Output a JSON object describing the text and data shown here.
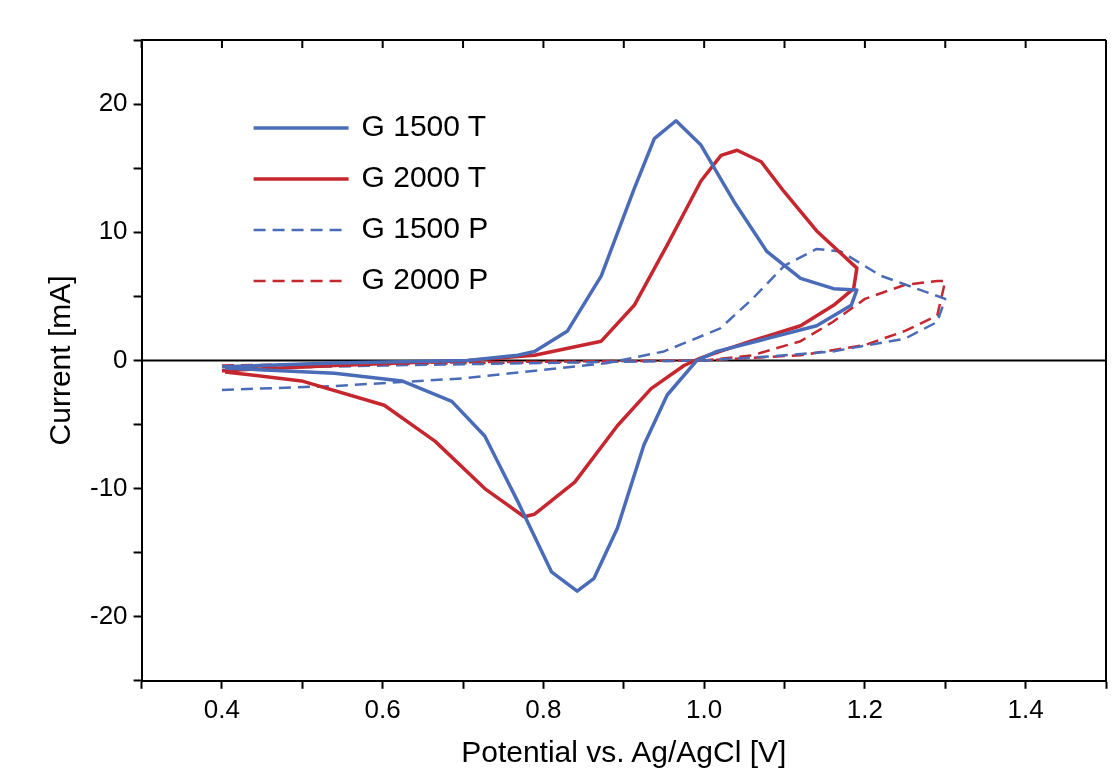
{
  "chart_data": {
    "type": "line",
    "xlabel": "Potential vs. Ag/AgCl [V]",
    "ylabel": "Current [mA]",
    "xlim": [
      0.3,
      1.5
    ],
    "ylim": [
      -25,
      25
    ],
    "xticks": [
      {
        "value": 0.3,
        "label": null
      },
      0.4,
      {
        "value": 0.5,
        "label": null
      },
      0.6,
      {
        "value": 0.7,
        "label": null
      },
      0.8,
      {
        "value": 0.9,
        "label": null
      },
      {
        "value": 1.0,
        "label": "1.0"
      },
      {
        "value": 1.1,
        "label": null
      },
      1.2,
      {
        "value": 1.3,
        "label": null
      },
      1.4,
      {
        "value": 1.5,
        "label": null
      }
    ],
    "yticks": [
      {
        "value": -25,
        "label": null
      },
      -20,
      {
        "value": -15,
        "label": null
      },
      -10,
      {
        "value": -5,
        "label": null
      },
      0,
      {
        "value": 5,
        "label": null
      },
      10,
      {
        "value": 15,
        "label": null
      },
      20,
      {
        "value": 25,
        "label": null
      }
    ],
    "legend": "top left",
    "marker": "none",
    "ref_lines": [
      {
        "axis": "y",
        "value": 0,
        "color": "#000000"
      }
    ],
    "series": [
      {
        "name": "G 1500 T",
        "color": "#4a6cb8",
        "line_style": "solid",
        "x": [
          0.4,
          0.54,
          0.706,
          0.768,
          0.789,
          0.83,
          0.872,
          0.913,
          0.938,
          0.965,
          0.996,
          1.037,
          1.078,
          1.12,
          1.161,
          1.19,
          1.183,
          1.14,
          1.078,
          1.016,
          0.991,
          0.954,
          0.925,
          0.892,
          0.863,
          0.842,
          0.81,
          0.768,
          0.727,
          0.686,
          0.624,
          0.54,
          0.404
        ],
        "values": [
          -0.5,
          -0.2,
          0,
          0.4,
          0.7,
          2.3,
          6.6,
          13.4,
          17.3,
          18.7,
          16.8,
          12.4,
          8.5,
          6.4,
          5.6,
          5.5,
          4.3,
          2.7,
          1.7,
          0.7,
          0,
          -2.7,
          -6.6,
          -13.1,
          -17,
          -18,
          -16.5,
          -11,
          -5.9,
          -3.2,
          -1.6,
          -1,
          -0.6
        ]
      },
      {
        "name": "G 2000 T",
        "color": "#c6262d",
        "line_style": "solid",
        "x": [
          0.4,
          0.54,
          0.706,
          0.789,
          0.872,
          0.913,
          0.954,
          0.996,
          1.021,
          1.041,
          1.071,
          1.099,
          1.14,
          1.19,
          1.186,
          1.161,
          1.12,
          1.058,
          0.996,
          0.975,
          0.934,
          0.892,
          0.839,
          0.789,
          0.776,
          0.727,
          0.665,
          0.602,
          0.499,
          0.404
        ],
        "values": [
          -0.8,
          -0.4,
          0,
          0.4,
          1.5,
          4.3,
          9,
          14,
          16,
          16.4,
          15.5,
          13.2,
          10.1,
          7.2,
          5.6,
          4.3,
          2.7,
          1.5,
          0.2,
          -0.4,
          -2.2,
          -5.1,
          -9.5,
          -12,
          -12.2,
          -10,
          -6.3,
          -3.5,
          -1.6,
          -0.9
        ]
      },
      {
        "name": "G 1500 P",
        "color": "#4a6cb8",
        "line_style": "dashed",
        "x": [
          0.4,
          0.54,
          0.7,
          0.79,
          0.88,
          0.95,
          1.02,
          1.06,
          1.1,
          1.14,
          1.17,
          1.22,
          1.3,
          1.29,
          1.25,
          1.16,
          1.08,
          1.0,
          0.8,
          0.6,
          0.45,
          0.4
        ],
        "values": [
          -2.3,
          -2,
          -1.4,
          -0.8,
          -0.2,
          0.7,
          2.5,
          4.8,
          7.4,
          8.7,
          8.5,
          6.6,
          4.8,
          3,
          1.7,
          0.7,
          0.3,
          0,
          -0.2,
          -0.4,
          -0.6,
          -0.8
        ]
      },
      {
        "name": "G 2000 P",
        "color": "#c6262d",
        "line_style": "dashed",
        "x": [
          0.4,
          0.6,
          0.8,
          1.0,
          1.12,
          1.2,
          1.25,
          1.29,
          1.3,
          1.29,
          1.25,
          1.2,
          1.16,
          1.12,
          1.06,
          1.0,
          0.8,
          0.6,
          0.4
        ],
        "values": [
          -0.4,
          -0.2,
          -0.1,
          0,
          0.4,
          1.2,
          2.3,
          3.5,
          6.2,
          6.2,
          5.9,
          4.8,
          3,
          1.5,
          0.4,
          0,
          -0.15,
          -0.3,
          -0.6
        ]
      }
    ]
  }
}
